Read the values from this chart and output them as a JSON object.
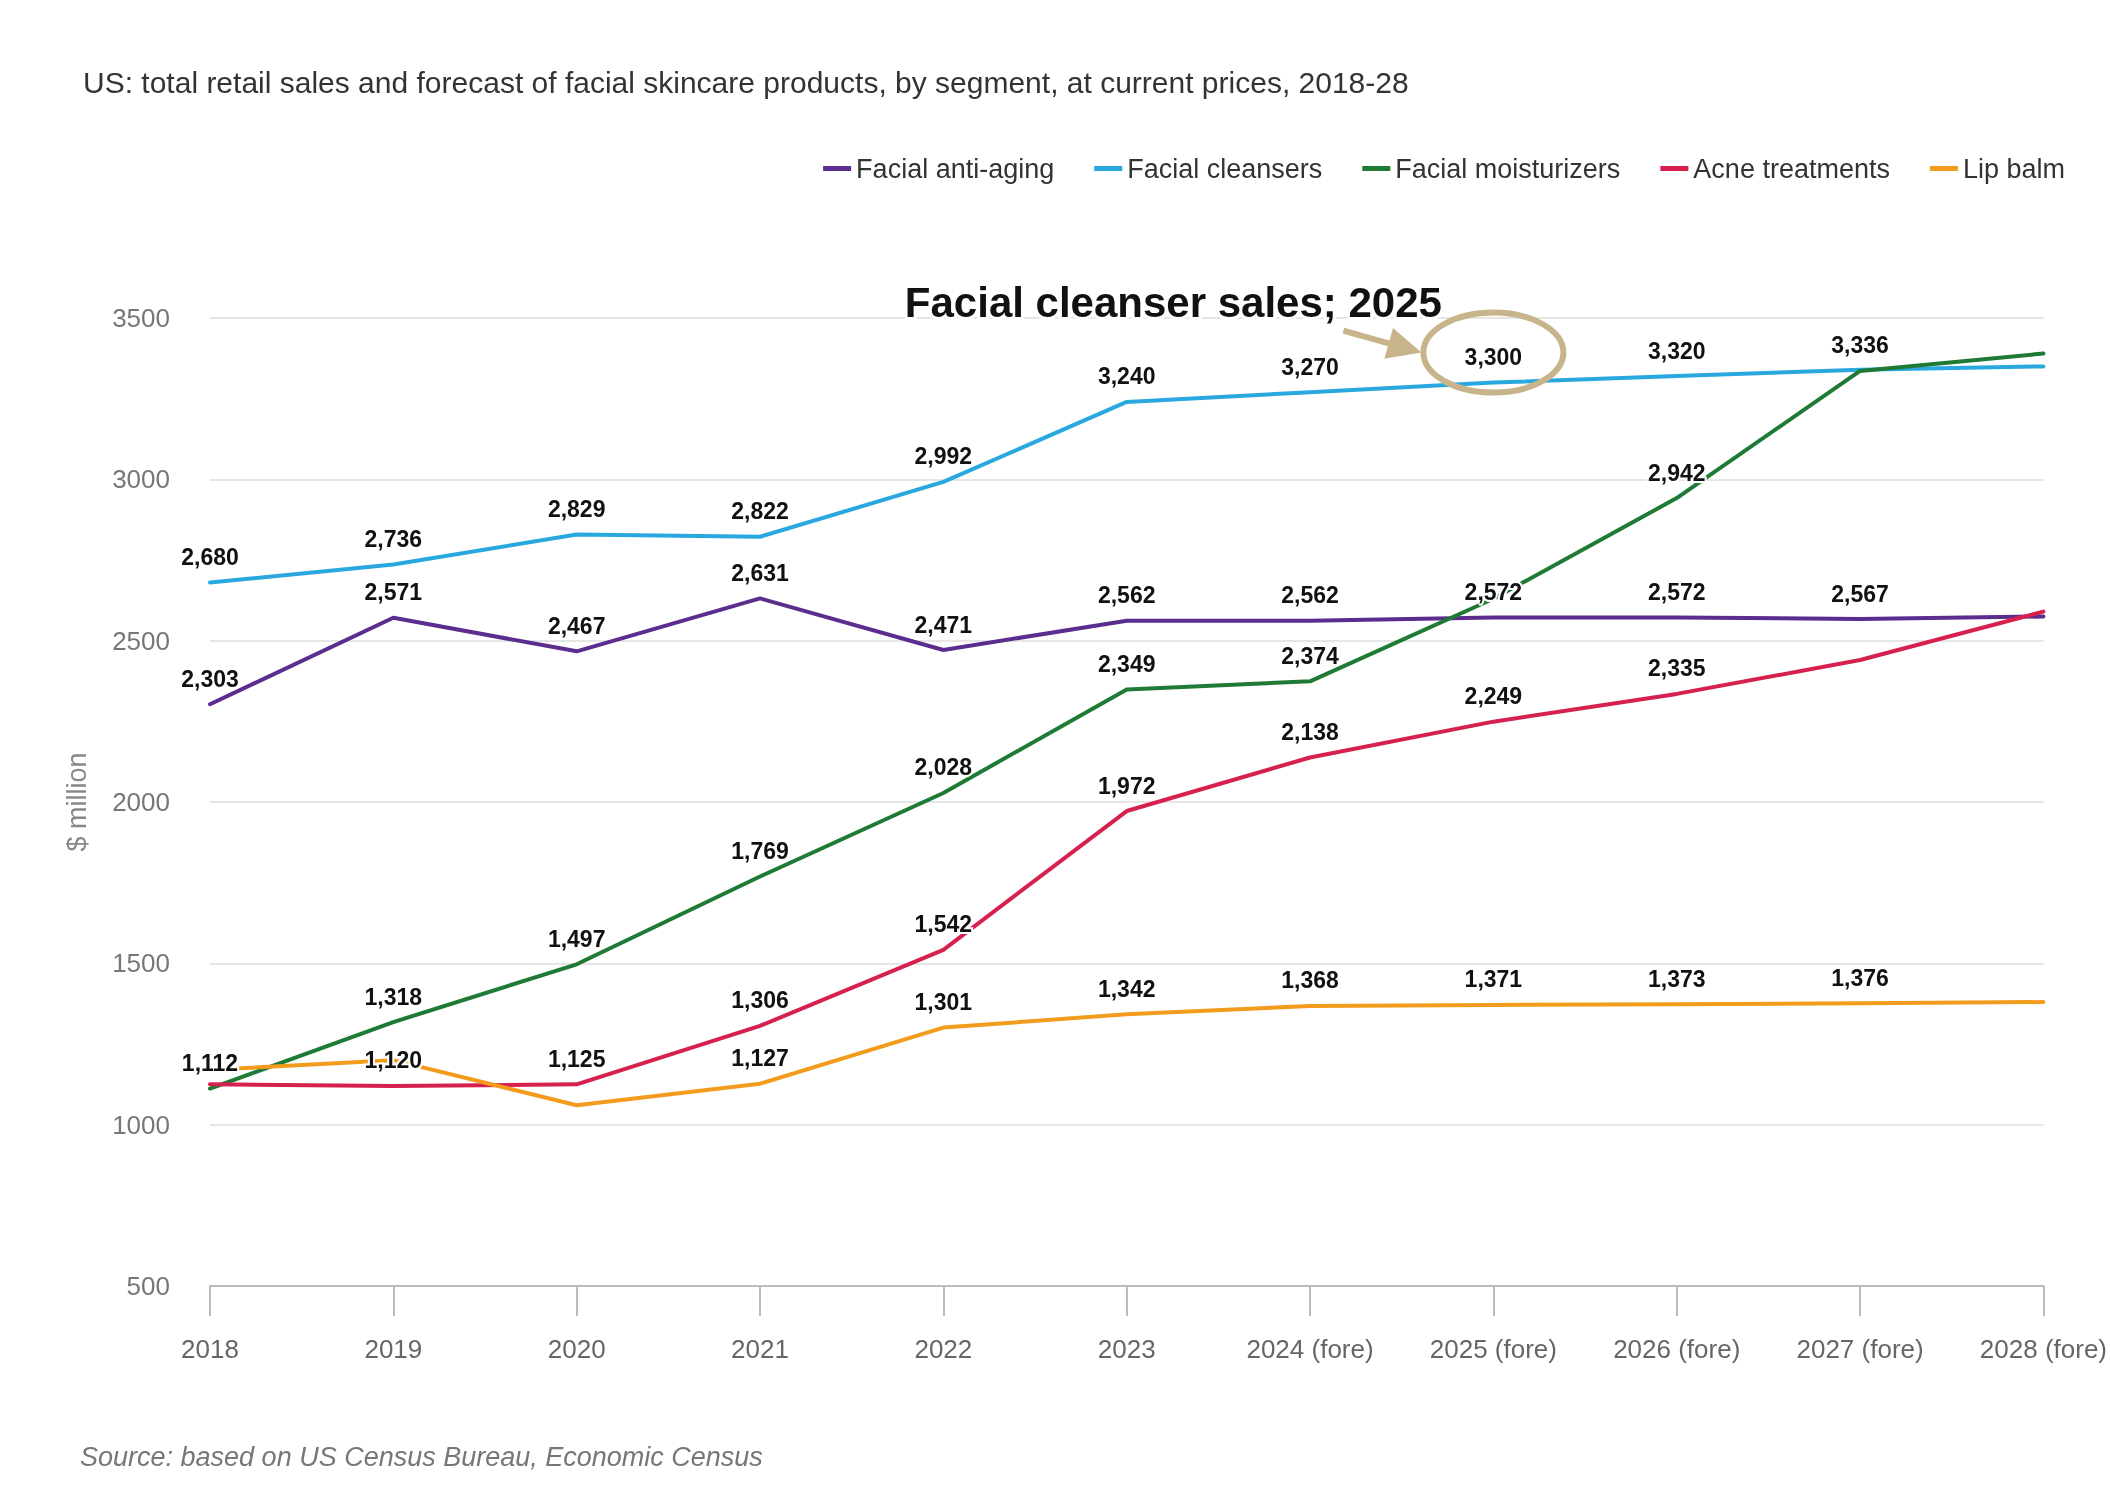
{
  "chart_data": {
    "type": "line",
    "title": "US: total retail sales and forecast of facial skincare products, by segment, at current prices, 2018-28",
    "ylabel": "$ million",
    "categories": [
      "2018",
      "2019",
      "2020",
      "2021",
      "2022",
      "2023",
      "2024 (fore)",
      "2025 (fore)",
      "2026 (fore)",
      "2027 (fore)",
      "2028 (fore)"
    ],
    "series": [
      {
        "name": "Facial anti-aging",
        "color": "#5b2d8e",
        "values": [
          2303,
          2571,
          2467,
          2631,
          2471,
          2562,
          2562,
          2572,
          2572,
          2567,
          2575
        ],
        "value_labels": [
          "2,303",
          "2,571",
          "2,467",
          "2,631",
          "2,471",
          "2,562",
          "2,562",
          "2,572",
          "2,572",
          "2,567",
          null
        ]
      },
      {
        "name": "Facial cleansers",
        "color": "#29a8df",
        "values": [
          2680,
          2736,
          2829,
          2822,
          2992,
          3240,
          3270,
          3300,
          3320,
          3340,
          3350
        ],
        "value_labels": [
          "2,680",
          "2,736",
          "2,829",
          "2,822",
          "2,992",
          "3,240",
          "3,270",
          "3,300",
          "3,320",
          null,
          null
        ]
      },
      {
        "name": "Facial moisturizers",
        "color": "#1e7a34",
        "values": [
          1112,
          1318,
          1497,
          1769,
          2028,
          2349,
          2374,
          2630,
          2942,
          3336,
          3390
        ],
        "value_labels": [
          "1,112",
          "1,318",
          "1,497",
          "1,769",
          "2,028",
          "2,349",
          "2,374",
          null,
          "2,942",
          "3,336",
          null
        ]
      },
      {
        "name": "Acne treatments",
        "color": "#d6204e",
        "values": [
          1125,
          1120,
          1125,
          1306,
          1542,
          1972,
          2138,
          2249,
          2335,
          2440,
          2590
        ],
        "value_labels": [
          null,
          "1,120",
          "1,125",
          "1,306",
          "1,542",
          "1,972",
          "2,138",
          "2,249",
          "2,335",
          null,
          null
        ]
      },
      {
        "name": "Lip balm",
        "color": "#f29b1c",
        "values": [
          1170,
          1200,
          1060,
          1127,
          1301,
          1342,
          1368,
          1371,
          1373,
          1376,
          1380
        ],
        "value_labels": [
          null,
          null,
          null,
          "1,127",
          "1,301",
          "1,342",
          "1,368",
          "1,371",
          "1,373",
          "1,376",
          null
        ]
      }
    ],
    "ylim": [
      500,
      3500
    ],
    "yticks": [
      500,
      1000,
      1500,
      2000,
      2500,
      3000,
      3500
    ],
    "grid": "y",
    "legend": "top right",
    "marker": "none",
    "line_style": "solid",
    "annotations": [
      {
        "text": "Facial cleanser sales; 2025",
        "x": "2025 (fore)",
        "y": 3300
      },
      "Source: based on US Census Bureau, Economic Census"
    ]
  }
}
